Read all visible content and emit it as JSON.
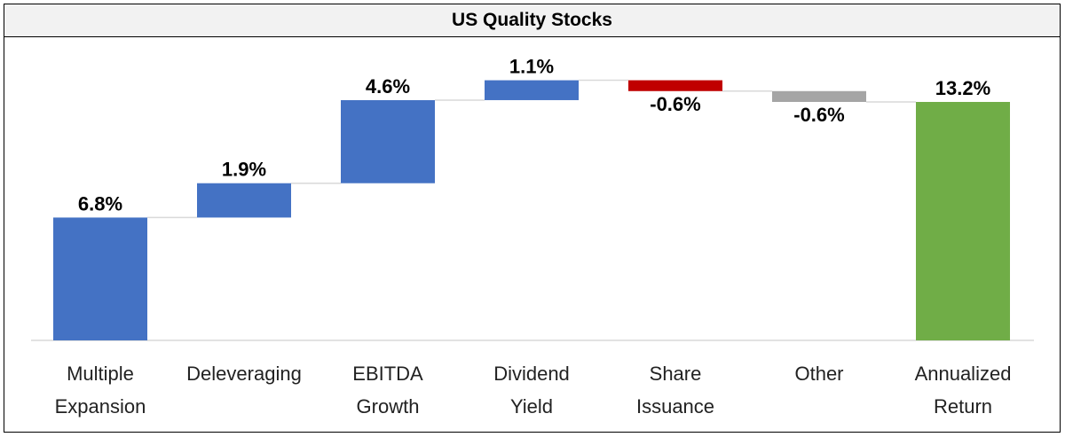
{
  "chart_data": {
    "type": "bar",
    "subtype": "waterfall",
    "title": "US Quality Stocks",
    "categories": [
      [
        "Multiple",
        "Expansion"
      ],
      [
        "Deleveraging"
      ],
      [
        "EBITDA",
        "Growth"
      ],
      [
        "Dividend",
        "Yield"
      ],
      [
        "Share",
        "Issuance"
      ],
      [
        "Other"
      ],
      [
        "Annualized",
        "Return"
      ]
    ],
    "values": [
      6.8,
      1.9,
      4.6,
      1.1,
      -0.6,
      -0.6,
      13.2
    ],
    "labels": [
      "6.8%",
      "1.9%",
      "4.6%",
      "1.1%",
      "-0.6%",
      "-0.6%",
      "13.2%"
    ],
    "bar_kinds": [
      "increase",
      "increase",
      "increase",
      "increase",
      "decrease",
      "other",
      "total"
    ],
    "ylim": [
      0,
      14.9
    ],
    "grid": false,
    "connector_lines": true,
    "colors": {
      "increase": "#4472c4",
      "decrease": "#c00000",
      "other": "#a5a5a5",
      "total": "#70ad47",
      "connector": "#d9d9d9",
      "axis": "#d9d9d9"
    }
  }
}
